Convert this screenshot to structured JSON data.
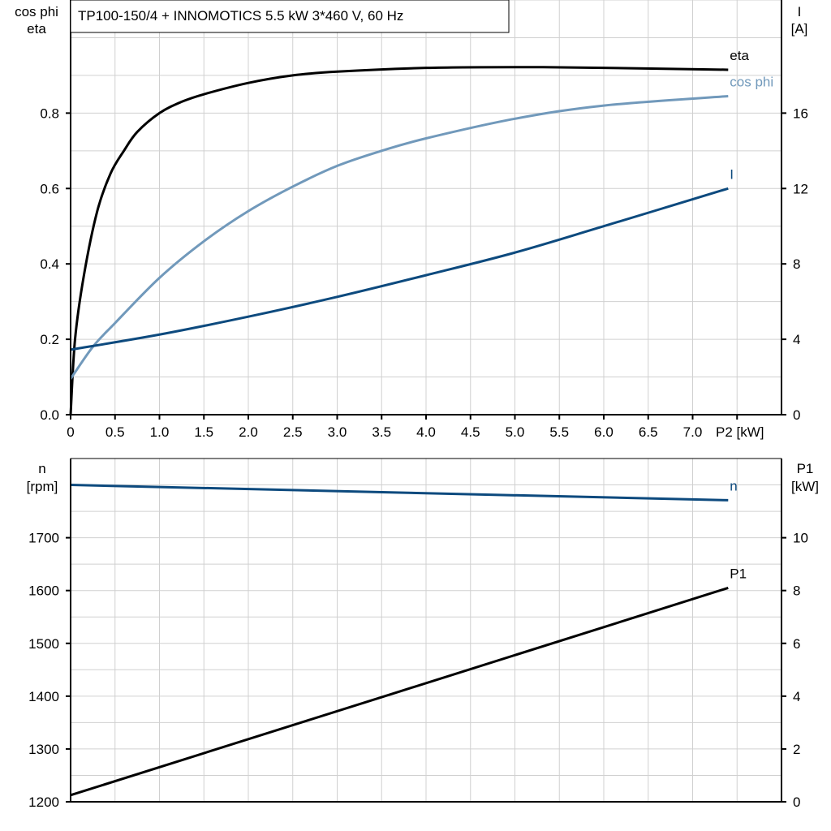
{
  "title": "TP100-150/4 + INNOMOTICS   5.5 kW   3*460 V, 60 Hz",
  "colors": {
    "eta": "#000000",
    "cos_phi": "#7199bb",
    "I": "#0d4a7e",
    "n": "#0d4a7e",
    "P1": "#000000",
    "grid": "#d0d0d0"
  },
  "chart_data": [
    {
      "type": "line",
      "xlabel": "P2 [kW]",
      "ylabel_left": [
        "cos phi",
        "eta"
      ],
      "ylabel_right": [
        "I",
        "[A]"
      ],
      "xlim": [
        0,
        8.0
      ],
      "ylim_left": [
        0,
        1.1
      ],
      "ylim_right": [
        0,
        22
      ],
      "grid": true,
      "x_ticks": [
        "0",
        "0.5",
        "1.0",
        "1.5",
        "2.0",
        "2.5",
        "3.0",
        "3.5",
        "4.0",
        "4.5",
        "5.0",
        "5.5",
        "6.0",
        "6.5",
        "7.0"
      ],
      "y_ticks_left": [
        "0.0",
        "0.2",
        "0.4",
        "0.6",
        "0.8"
      ],
      "y_ticks_right": [
        "0",
        "4",
        "8",
        "12",
        "16"
      ],
      "series": [
        {
          "name": "eta",
          "axis": "left",
          "x": [
            0,
            0.05,
            0.15,
            0.3,
            0.45,
            0.6,
            0.75,
            1.0,
            1.25,
            1.5,
            2.0,
            2.5,
            3.0,
            4.0,
            5.0,
            6.0,
            7.4
          ],
          "y": [
            0,
            0.2,
            0.37,
            0.54,
            0.64,
            0.7,
            0.75,
            0.8,
            0.83,
            0.85,
            0.88,
            0.9,
            0.91,
            0.92,
            0.922,
            0.92,
            0.915
          ]
        },
        {
          "name": "cos phi",
          "axis": "left",
          "x": [
            0,
            0.25,
            0.5,
            1.0,
            1.5,
            2.0,
            2.5,
            3.0,
            3.5,
            4.0,
            5.0,
            6.0,
            7.4
          ],
          "y": [
            0.095,
            0.18,
            0.243,
            0.363,
            0.46,
            0.54,
            0.605,
            0.66,
            0.7,
            0.733,
            0.785,
            0.82,
            0.845
          ]
        },
        {
          "name": "I",
          "axis": "right",
          "x": [
            0,
            1,
            2,
            3,
            4,
            5,
            6,
            7.4
          ],
          "y": [
            3.45,
            4.25,
            5.2,
            6.25,
            7.4,
            8.6,
            10.0,
            12.0
          ]
        }
      ]
    },
    {
      "type": "line",
      "xlim": [
        0,
        8.0
      ],
      "ylabel_left": [
        "n",
        "[rpm]"
      ],
      "ylabel_right": [
        "P1",
        "[kW]"
      ],
      "ylim_left": [
        1200,
        1850
      ],
      "ylim_right": [
        0,
        13
      ],
      "grid": true,
      "y_ticks_left": [
        "1200",
        "1300",
        "1400",
        "1500",
        "1600",
        "1700"
      ],
      "y_ticks_right": [
        "0",
        "2",
        "4",
        "6",
        "8",
        "10"
      ],
      "series": [
        {
          "name": "n",
          "axis": "left",
          "x": [
            0,
            7.4
          ],
          "y": [
            1800,
            1771
          ]
        },
        {
          "name": "P1",
          "axis": "right",
          "x": [
            0,
            7.4
          ],
          "y": [
            0.25,
            8.1
          ]
        }
      ]
    }
  ]
}
